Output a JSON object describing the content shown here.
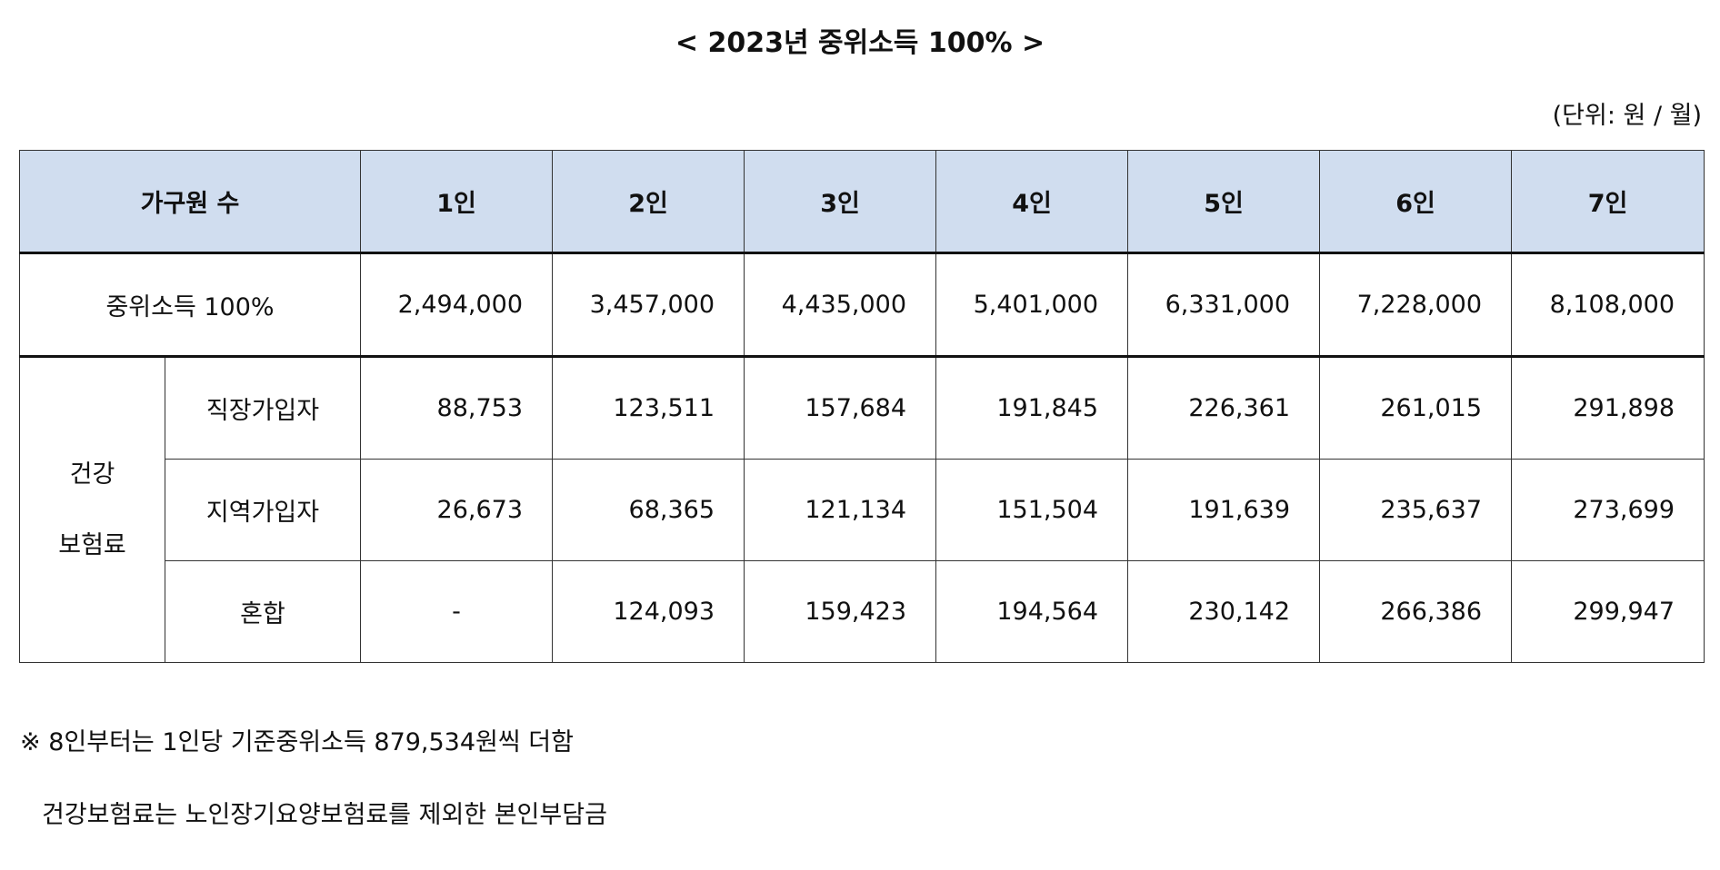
{
  "document": {
    "title": "< 2023년 중위소득 100% >",
    "unit": "(단위: 원 / 월)"
  },
  "table": {
    "header": {
      "first": "가구원 수",
      "sizes": [
        "1인",
        "2인",
        "3인",
        "4인",
        "5인",
        "6인",
        "7인"
      ]
    },
    "median_row": {
      "label": "중위소득 100%",
      "values": [
        "2,494,000",
        "3,457,000",
        "4,435,000",
        "5,401,000",
        "6,331,000",
        "7,228,000",
        "8,108,000"
      ]
    },
    "insurance": {
      "group_label_line1": "건강",
      "group_label_line2": "보험료",
      "rows": [
        {
          "label": "직장가입자",
          "values": [
            "88,753",
            "123,511",
            "157,684",
            "191,845",
            "226,361",
            "261,015",
            "291,898"
          ]
        },
        {
          "label": "지역가입자",
          "values": [
            "26,673",
            "68,365",
            "121,134",
            "151,504",
            "191,639",
            "235,637",
            "273,699"
          ]
        },
        {
          "label": "혼합",
          "values": [
            "-",
            "124,093",
            "159,423",
            "194,564",
            "230,142",
            "266,386",
            "299,947"
          ]
        }
      ]
    }
  },
  "notes": {
    "line1": "※ 8인부터는 1인당 기준중위소득 879,534원씩 더함",
    "line2": "건강보험료는 노인장기요양보험료를 제외한 본인부담금"
  }
}
